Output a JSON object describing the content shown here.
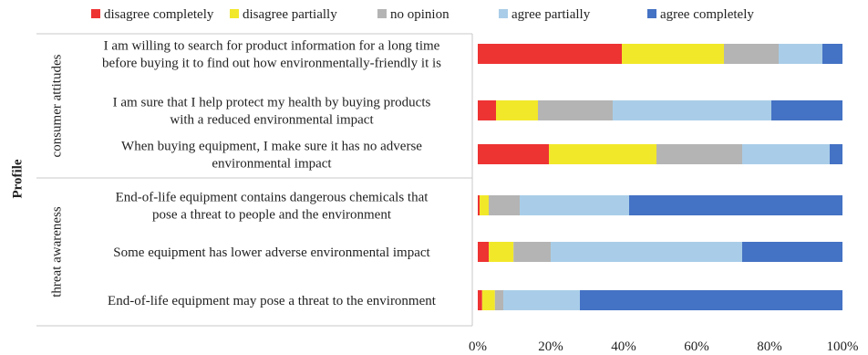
{
  "chart_data": {
    "type": "bar",
    "orientation": "horizontal",
    "stacked": "percent",
    "ylabel": "Profile",
    "groups": [
      {
        "label": "consumer attitudes",
        "rows": [
          0,
          1,
          2
        ]
      },
      {
        "label": "threat awareness",
        "rows": [
          3,
          4,
          5
        ]
      }
    ],
    "categories": [
      [
        "I am willing to search for product information for a long time",
        "before buying it to find out how environmentally-friendly it is"
      ],
      [
        "I am sure that I help protect my health by buying products",
        "with a reduced environmental impact"
      ],
      [
        "When buying equipment, I make sure it has no adverse",
        "environmental impact"
      ],
      [
        "End-of-life equipment contains dangerous chemicals that",
        "pose a threat to people and the environment"
      ],
      [
        "Some equipment has lower adverse environmental impact"
      ],
      [
        "End-of-life equipment may pose a threat to the environment"
      ]
    ],
    "series": [
      {
        "name": "disagree completely",
        "color": "#ee3333",
        "values": [
          39.5,
          5,
          19.5,
          0.5,
          3,
          1.2
        ]
      },
      {
        "name": "disagree partially",
        "color": "#f2e82a",
        "values": [
          28,
          11.5,
          29.5,
          2.5,
          6.8,
          3.5
        ]
      },
      {
        "name": "no opinion",
        "color": "#b4b4b4",
        "values": [
          15,
          20.5,
          23.5,
          8.5,
          10.2,
          2.3
        ]
      },
      {
        "name": "agree partially",
        "color": "#a9cde8",
        "values": [
          12,
          43.5,
          24,
          30,
          52.5,
          21
        ]
      },
      {
        "name": "agree completely",
        "color": "#4472c4",
        "values": [
          5.5,
          19.5,
          3.5,
          58.5,
          27.5,
          72
        ]
      }
    ],
    "xticks": [
      "0%",
      "20%",
      "40%",
      "60%",
      "80%",
      "100%"
    ],
    "xlim": [
      0,
      100
    ],
    "legend_position": "top"
  }
}
